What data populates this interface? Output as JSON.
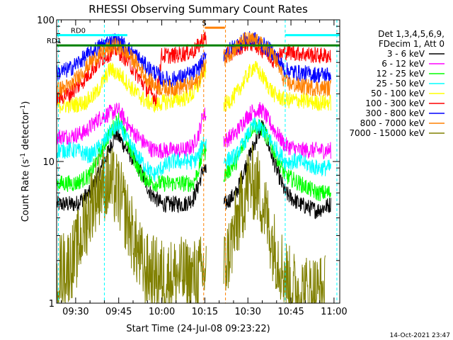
{
  "chart_data": {
    "type": "line",
    "title": "RHESSI Observing Summary Count Rates",
    "xlabel": "Start Time (24-Jul-08 09:23:22)",
    "ylabel_parts": [
      "Count Rate (s",
      "-1",
      " detector",
      "-1",
      ")"
    ],
    "x_ticks": [
      "09:30",
      "09:45",
      "10:00",
      "10:15",
      "10:30",
      "10:45",
      "11:00"
    ],
    "x_tick_minutes": [
      30,
      45,
      60,
      75,
      90,
      105,
      120
    ],
    "x_range_minutes": [
      23.37,
      122
    ],
    "y_scale": "log",
    "y_ticks": [
      "1",
      "10",
      "100"
    ],
    "ylim": [
      1,
      100
    ],
    "grid": false,
    "legend_header": [
      "Det 1,3,4,5,6,9,",
      "FDecim 1, Att 0"
    ],
    "legend_position": "right",
    "series": [
      {
        "name": "3 - 6 keV",
        "color": "#000000",
        "points": [
          [
            23.5,
            5
          ],
          [
            30,
            5
          ],
          [
            35,
            6
          ],
          [
            40,
            10
          ],
          [
            44,
            16
          ],
          [
            48,
            12
          ],
          [
            52,
            9
          ],
          [
            56,
            6
          ],
          [
            60,
            5
          ],
          [
            64,
            5
          ],
          [
            68,
            5
          ],
          [
            71,
            5.5
          ],
          [
            73,
            7
          ],
          [
            74.5,
            9
          ],
          [
            82,
            5
          ],
          [
            86,
            6
          ],
          [
            89,
            9
          ],
          [
            92,
            13
          ],
          [
            95,
            18
          ],
          [
            99,
            10
          ],
          [
            103,
            6
          ],
          [
            108,
            5
          ],
          [
            114,
            4.5
          ],
          [
            119,
            5
          ]
        ]
      },
      {
        "name": "6 - 12 keV",
        "color": "#ff00ff",
        "points": [
          [
            23.5,
            15
          ],
          [
            28,
            15
          ],
          [
            33,
            16
          ],
          [
            38,
            20
          ],
          [
            42,
            22
          ],
          [
            45,
            23
          ],
          [
            49,
            17
          ],
          [
            53,
            14
          ],
          [
            57,
            12
          ],
          [
            60,
            12
          ],
          [
            64,
            12
          ],
          [
            68,
            12
          ],
          [
            71,
            13
          ],
          [
            73,
            16
          ],
          [
            74.5,
            22
          ],
          [
            82,
            14
          ],
          [
            86,
            16
          ],
          [
            89,
            20
          ],
          [
            92,
            23
          ],
          [
            95,
            23
          ],
          [
            99,
            17
          ],
          [
            103,
            13
          ],
          [
            108,
            12
          ],
          [
            114,
            12
          ],
          [
            119,
            12
          ]
        ]
      },
      {
        "name": "12 - 25 keV",
        "color": "#00ff00",
        "points": [
          [
            23.5,
            7
          ],
          [
            30,
            7
          ],
          [
            35,
            8
          ],
          [
            39,
            12
          ],
          [
            42,
            16
          ],
          [
            45,
            20
          ],
          [
            49,
            12
          ],
          [
            53,
            8
          ],
          [
            57,
            7
          ],
          [
            60,
            7
          ],
          [
            64,
            7
          ],
          [
            68,
            7
          ],
          [
            71,
            7
          ],
          [
            73,
            9
          ],
          [
            74.5,
            12
          ],
          [
            82,
            8
          ],
          [
            86,
            10
          ],
          [
            89,
            14
          ],
          [
            92,
            18
          ],
          [
            95,
            17
          ],
          [
            99,
            12
          ],
          [
            103,
            8
          ],
          [
            108,
            7
          ],
          [
            114,
            6
          ],
          [
            119,
            6
          ]
        ]
      },
      {
        "name": "25 - 50 keV",
        "color": "#00ffff",
        "points": [
          [
            23.5,
            12
          ],
          [
            30,
            12
          ],
          [
            35,
            11
          ],
          [
            39,
            13
          ],
          [
            42,
            16
          ],
          [
            45,
            18
          ],
          [
            49,
            13
          ],
          [
            53,
            10
          ],
          [
            57,
            8
          ],
          [
            60,
            9
          ],
          [
            64,
            10
          ],
          [
            68,
            10
          ],
          [
            71,
            10
          ],
          [
            73,
            11
          ],
          [
            74.5,
            14
          ],
          [
            82,
            10
          ],
          [
            86,
            11
          ],
          [
            89,
            14
          ],
          [
            92,
            18
          ],
          [
            95,
            17
          ],
          [
            99,
            13
          ],
          [
            103,
            10
          ],
          [
            108,
            10
          ],
          [
            114,
            9
          ],
          [
            119,
            9
          ]
        ]
      },
      {
        "name": "50 - 100 keV",
        "color": "#ffff00",
        "points": [
          [
            23.5,
            25
          ],
          [
            29,
            25
          ],
          [
            33,
            26
          ],
          [
            37,
            30
          ],
          [
            40,
            38
          ],
          [
            42,
            45
          ],
          [
            46,
            40
          ],
          [
            50,
            32
          ],
          [
            54,
            27
          ],
          [
            58,
            25
          ],
          [
            60,
            26
          ],
          [
            64,
            27
          ],
          [
            68,
            28
          ],
          [
            71,
            30
          ],
          [
            73,
            35
          ],
          [
            74.5,
            45
          ],
          [
            82,
            25
          ],
          [
            86,
            30
          ],
          [
            89,
            38
          ],
          [
            92,
            47
          ],
          [
            95,
            40
          ],
          [
            99,
            30
          ],
          [
            103,
            27
          ],
          [
            108,
            27
          ],
          [
            114,
            26
          ],
          [
            119,
            26
          ]
        ]
      },
      {
        "name": "100 - 300 keV",
        "color": "#ff0000",
        "points": [
          [
            23.5,
            28
          ],
          [
            28,
            30
          ],
          [
            32,
            36
          ],
          [
            36,
            45
          ],
          [
            40,
            55
          ],
          [
            44,
            62
          ],
          [
            47,
            55
          ],
          [
            51,
            42
          ],
          [
            55,
            32
          ],
          [
            58,
            28
          ],
          [
            60,
            56
          ],
          [
            64,
            56
          ],
          [
            68,
            58
          ],
          [
            71,
            60
          ],
          [
            73,
            66
          ],
          [
            74.5,
            75
          ],
          [
            82,
            55
          ],
          [
            86,
            62
          ],
          [
            89,
            68
          ],
          [
            92,
            68
          ],
          [
            95,
            62
          ],
          [
            99,
            52
          ],
          [
            103,
            60
          ],
          [
            108,
            58
          ],
          [
            114,
            56
          ],
          [
            119,
            56
          ]
        ]
      },
      {
        "name": "300 - 800 keV",
        "color": "#0000ff",
        "points": [
          [
            23.5,
            42
          ],
          [
            28,
            45
          ],
          [
            32,
            52
          ],
          [
            36,
            60
          ],
          [
            40,
            68
          ],
          [
            44,
            72
          ],
          [
            47,
            66
          ],
          [
            51,
            56
          ],
          [
            55,
            46
          ],
          [
            58,
            42
          ],
          [
            60,
            38
          ],
          [
            64,
            38
          ],
          [
            68,
            40
          ],
          [
            71,
            42
          ],
          [
            73,
            46
          ],
          [
            74.5,
            52
          ],
          [
            82,
            58
          ],
          [
            86,
            66
          ],
          [
            89,
            72
          ],
          [
            92,
            73
          ],
          [
            95,
            67
          ],
          [
            99,
            58
          ],
          [
            103,
            44
          ],
          [
            108,
            42
          ],
          [
            114,
            41
          ],
          [
            119,
            41
          ]
        ]
      },
      {
        "name": "800 - 7000 keV",
        "color": "#ff8000",
        "points": [
          [
            23.5,
            32
          ],
          [
            28,
            34
          ],
          [
            32,
            42
          ],
          [
            36,
            52
          ],
          [
            40,
            60
          ],
          [
            44,
            66
          ],
          [
            47,
            60
          ],
          [
            51,
            50
          ],
          [
            55,
            38
          ],
          [
            58,
            34
          ],
          [
            60,
            33
          ],
          [
            64,
            33
          ],
          [
            68,
            34
          ],
          [
            71,
            35
          ],
          [
            73,
            38
          ],
          [
            74.5,
            45
          ],
          [
            79,
            70
          ],
          [
            82,
            54
          ],
          [
            86,
            64
          ],
          [
            89,
            72
          ],
          [
            92,
            72
          ],
          [
            95,
            66
          ],
          [
            99,
            56
          ],
          [
            103,
            36
          ],
          [
            108,
            34
          ],
          [
            114,
            33
          ],
          [
            119,
            33
          ]
        ]
      },
      {
        "name": "7000 - 15000 keV",
        "color": "#808000",
        "points": [
          [
            23.5,
            1.7
          ],
          [
            27,
            1.8
          ],
          [
            30,
            2.2
          ],
          [
            33,
            3.5
          ],
          [
            36,
            5.5
          ],
          [
            39,
            7
          ],
          [
            42,
            7
          ],
          [
            45,
            6
          ],
          [
            48,
            4
          ],
          [
            51,
            2.5
          ],
          [
            54,
            1.7
          ],
          [
            58,
            1.6
          ],
          [
            62,
            1.5
          ],
          [
            66,
            1.6
          ],
          [
            70,
            1.5
          ],
          [
            73,
            1.6
          ],
          [
            75,
            1.7
          ],
          [
            82,
            1.8
          ],
          [
            85,
            3
          ],
          [
            88,
            5
          ],
          [
            90,
            7
          ],
          [
            93,
            7
          ],
          [
            96,
            4.5
          ],
          [
            99,
            2.5
          ],
          [
            102,
            1.8
          ],
          [
            105,
            1.3
          ],
          [
            108,
            1.2
          ],
          [
            112,
            1.2
          ],
          [
            117,
            1.2
          ]
        ]
      }
    ],
    "annotations": [
      {
        "label": "RD0",
        "color": "#00ffff",
        "x_minutes": [
          23.37,
          48
        ],
        "level": 78
      },
      {
        "label": "RD1",
        "color": "#008000",
        "x_minutes": [
          23.37,
          122
        ],
        "level": 66
      },
      {
        "label": "S",
        "color": "#ff8000",
        "x_minutes": [
          75,
          82
        ],
        "level": 88
      },
      {
        "label": "",
        "color": "#00ffff",
        "x_minutes": [
          103,
          122
        ],
        "level": 78
      }
    ],
    "markers": [
      {
        "x_minutes": 24.0,
        "color": "#00ffff"
      },
      {
        "x_minutes": 40.0,
        "color": "#00ffff"
      },
      {
        "x_minutes": 74.6,
        "color": "#ff8000"
      },
      {
        "x_minutes": 82.2,
        "color": "#ff8000"
      },
      {
        "x_minutes": 103.0,
        "color": "#00ffff"
      },
      {
        "x_minutes": 121.0,
        "color": "#00ffff"
      }
    ],
    "gaps_minutes": [
      [
        75.5,
        81.5
      ]
    ]
  },
  "footer_timestamp": "14-Oct-2021 23:47"
}
